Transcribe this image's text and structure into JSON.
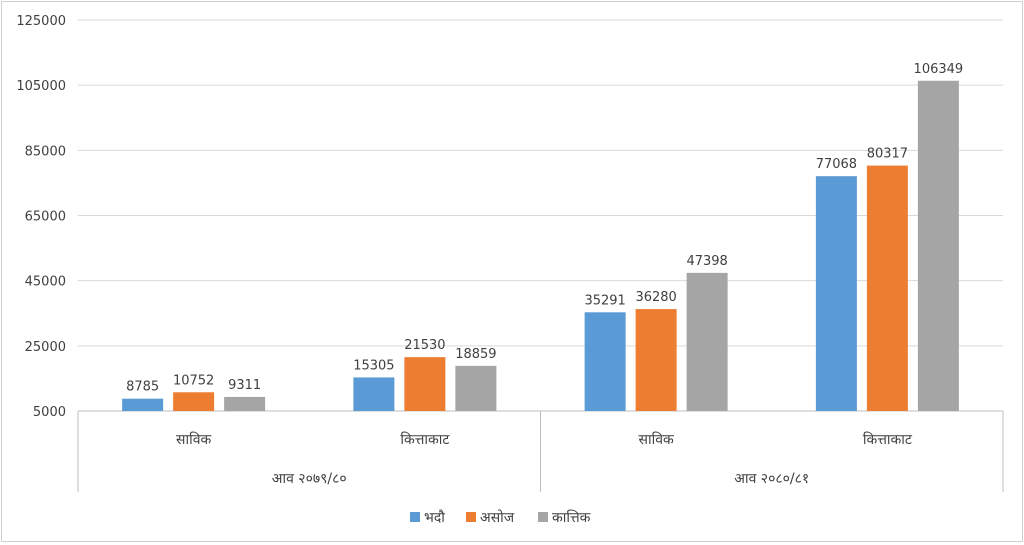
{
  "chart_data": {
    "type": "bar",
    "title": "",
    "xlabel": "",
    "ylabel": "",
    "ylim": [
      5000,
      125000
    ],
    "yticks": [
      5000,
      25000,
      45000,
      65000,
      85000,
      105000,
      125000
    ],
    "grid": true,
    "legend_position": "bottom",
    "groups": [
      {
        "label": "आव २०७९/८०",
        "categories": [
          "साविक",
          "कित्ताकाट"
        ]
      },
      {
        "label": "आव २०८०/८१",
        "categories": [
          "साविक",
          "कित्ताकाट"
        ]
      }
    ],
    "categories": [
      "साविक",
      "कित्ताकाट",
      "साविक",
      "कित्ताकाट"
    ],
    "series": [
      {
        "name": "भदौ",
        "color": "#5b9bd5",
        "values": [
          8785,
          15305,
          35291,
          77068
        ]
      },
      {
        "name": "असोज",
        "color": "#ed7d31",
        "values": [
          10752,
          21530,
          36280,
          80317
        ]
      },
      {
        "name": "कात्तिक",
        "color": "#a5a5a5",
        "values": [
          9311,
          18859,
          47398,
          106349
        ]
      }
    ]
  }
}
